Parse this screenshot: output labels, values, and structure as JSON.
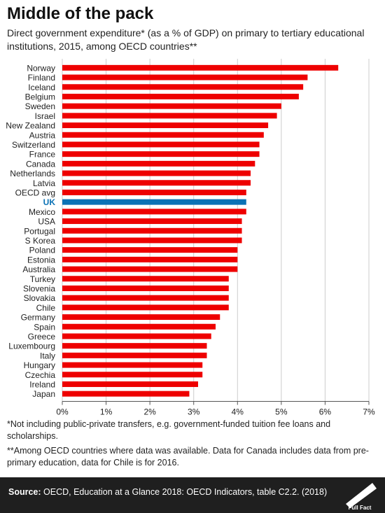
{
  "title": "Middle of the pack",
  "subtitle": "Direct government expenditure* (as a % of GDP) on primary to tertiary educational institutions, 2015, among OECD countries**",
  "footnote1": "*Not including public-private transfers, e.g. government-funded tuition fee loans and scholarships.",
  "footnote2": "**Among OECD countries where data was available. Data for Canada includes data from pre-primary education, data for Chile is for 2016.",
  "source_label": "Source:",
  "source_text": "OECD, Education at a Glance 2018: OECD Indicators, table C2.2. (2018)",
  "logo_text": "Full Fact",
  "colors": {
    "bar": "#ee0000",
    "highlight": "#0b72b5",
    "grid": "#cccccc",
    "axis": "#555555"
  },
  "chart_data": {
    "type": "bar",
    "orientation": "horizontal",
    "title": "",
    "xlabel": "",
    "ylabel": "",
    "xlim": [
      0,
      7
    ],
    "x_ticks": [
      "0%",
      "1%",
      "2%",
      "3%",
      "4%",
      "5%",
      "6%",
      "7%"
    ],
    "grid": true,
    "highlight_category": "UK",
    "categories": [
      "Norway",
      "Finland",
      "Iceland",
      "Belgium",
      "Sweden",
      "Israel",
      "New Zealand",
      "Austria",
      "Switzerland",
      "France",
      "Canada",
      "Netherlands",
      "Latvia",
      "OECD avg",
      "UK",
      "Mexico",
      "USA",
      "Portugal",
      "S Korea",
      "Poland",
      "Estonia",
      "Australia",
      "Turkey",
      "Slovenia",
      "Slovakia",
      "Chile",
      "Germany",
      "Spain",
      "Greece",
      "Luxembourg",
      "Italy",
      "Hungary",
      "Czechia",
      "Ireland",
      "Japan"
    ],
    "values": [
      6.3,
      5.6,
      5.5,
      5.4,
      5.0,
      4.9,
      4.7,
      4.6,
      4.5,
      4.5,
      4.4,
      4.3,
      4.3,
      4.2,
      4.2,
      4.2,
      4.1,
      4.1,
      4.1,
      4.0,
      4.0,
      4.0,
      3.8,
      3.8,
      3.8,
      3.8,
      3.6,
      3.5,
      3.4,
      3.3,
      3.3,
      3.2,
      3.2,
      3.1,
      2.9
    ]
  }
}
